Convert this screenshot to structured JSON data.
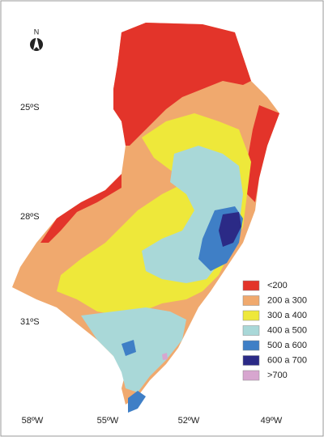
{
  "north_label": "N",
  "latitude_labels": [
    "25ºS",
    "28ºS",
    "31ºS"
  ],
  "longitude_labels": [
    "58ºW",
    "55ºW",
    "52ºW",
    "49ºW"
  ],
  "legend": [
    {
      "label": "<200",
      "color": "#e3342a"
    },
    {
      "label": "200 a 300",
      "color": "#f0a96e"
    },
    {
      "label": "300 a 400",
      "color": "#eee83a"
    },
    {
      "label": "400 a 500",
      "color": "#a9d8d8"
    },
    {
      "label": "500 a 600",
      "color": "#3f7fc6"
    },
    {
      "label": "600 a 700",
      "color": "#2b2a86"
    },
    {
      "label": ">700",
      "color": "#d7a6cf"
    }
  ]
}
